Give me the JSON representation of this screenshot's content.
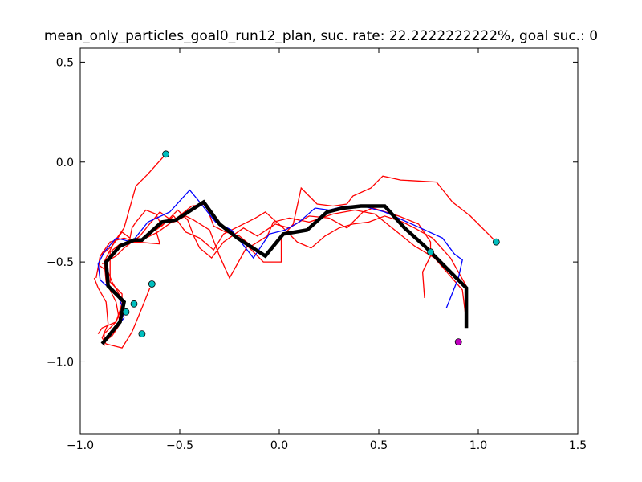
{
  "chart_data": {
    "type": "line",
    "title": "mean_only_particles_goal0_run12_plan, suc. rate: 22.2222222222%, goal suc.: 0",
    "xlim": [
      -1.0,
      1.5
    ],
    "ylim": [
      -1.36,
      0.57
    ],
    "xticks": [
      {
        "value": -1.0,
        "label": "−1.0"
      },
      {
        "value": -0.5,
        "label": "−0.5"
      },
      {
        "value": 0.0,
        "label": "0.0"
      },
      {
        "value": 0.5,
        "label": "0.5"
      },
      {
        "value": 1.0,
        "label": "1.0"
      },
      {
        "value": 1.5,
        "label": "1.5"
      }
    ],
    "yticks": [
      {
        "value": 0.5,
        "label": "0.5"
      },
      {
        "value": 0.0,
        "label": "0.0"
      },
      {
        "value": -0.5,
        "label": "−0.5"
      },
      {
        "value": -1.0,
        "label": "−1.0"
      }
    ],
    "grid": false,
    "colors": {
      "red": "#ff0000",
      "blue": "#0000ff",
      "black": "#000000",
      "cyan": "#00bfbf",
      "magenta": "#bf00bf"
    },
    "series": [
      {
        "kind": "particle",
        "color": "#ff0000",
        "width": 1.3,
        "points": [
          [
            -0.57,
            0.04
          ],
          [
            -0.66,
            -0.06
          ],
          [
            -0.72,
            -0.12
          ],
          [
            -0.78,
            -0.33
          ],
          [
            -0.83,
            -0.4
          ],
          [
            -0.88,
            -0.5
          ],
          [
            -0.87,
            -0.6
          ],
          [
            -0.82,
            -0.7
          ],
          [
            -0.8,
            -0.81
          ],
          [
            -0.84,
            -0.87
          ],
          [
            -0.88,
            -0.9
          ]
        ]
      },
      {
        "kind": "particle",
        "color": "#ff0000",
        "width": 1.3,
        "points": [
          [
            -0.91,
            -0.54
          ],
          [
            -0.9,
            -0.47
          ],
          [
            -0.84,
            -0.42
          ],
          [
            -0.79,
            -0.35
          ],
          [
            -0.75,
            -0.38
          ],
          [
            -0.74,
            -0.33
          ],
          [
            -0.72,
            -0.3
          ],
          [
            -0.67,
            -0.24
          ],
          [
            -0.62,
            -0.26
          ],
          [
            -0.59,
            -0.32
          ],
          [
            -0.55,
            -0.28
          ],
          [
            -0.51,
            -0.24
          ],
          [
            -0.46,
            -0.29
          ],
          [
            -0.43,
            -0.37
          ],
          [
            -0.4,
            -0.43
          ],
          [
            -0.34,
            -0.48
          ],
          [
            -0.28,
            -0.4
          ],
          [
            -0.18,
            -0.33
          ],
          [
            -0.11,
            -0.37
          ],
          [
            -0.02,
            -0.31
          ],
          [
            0.05,
            -0.33
          ],
          [
            0.15,
            -0.27
          ],
          [
            0.25,
            -0.28
          ],
          [
            0.34,
            -0.33
          ],
          [
            0.42,
            -0.25
          ],
          [
            0.47,
            -0.23
          ],
          [
            0.6,
            -0.27
          ],
          [
            0.7,
            -0.31
          ],
          [
            0.76,
            -0.4
          ],
          [
            0.76,
            -0.47
          ],
          [
            0.72,
            -0.55
          ],
          [
            0.73,
            -0.68
          ]
        ]
      },
      {
        "kind": "particle",
        "color": "#ff0000",
        "width": 1.3,
        "points": [
          [
            -0.9,
            -0.52
          ],
          [
            -0.86,
            -0.55
          ],
          [
            -0.84,
            -0.6
          ],
          [
            -0.8,
            -0.67
          ],
          [
            -0.8,
            -0.75
          ],
          [
            -0.82,
            -0.8
          ],
          [
            -0.89,
            -0.83
          ],
          [
            -0.91,
            -0.86
          ]
        ]
      },
      {
        "kind": "particle",
        "color": "#ff0000",
        "width": 1.3,
        "points": [
          [
            -0.93,
            -0.58
          ],
          [
            -0.91,
            -0.63
          ],
          [
            -0.87,
            -0.7
          ],
          [
            -0.86,
            -0.81
          ],
          [
            -0.89,
            -0.88
          ],
          [
            -0.87,
            -0.91
          ],
          [
            -0.79,
            -0.93
          ],
          [
            -0.74,
            -0.85
          ],
          [
            -0.69,
            -0.73
          ],
          [
            -0.65,
            -0.63
          ]
        ]
      },
      {
        "kind": "particle",
        "color": "#ff0000",
        "width": 1.3,
        "points": [
          [
            -0.89,
            -0.51
          ],
          [
            -0.82,
            -0.47
          ],
          [
            -0.78,
            -0.43
          ],
          [
            -0.7,
            -0.37
          ],
          [
            -0.66,
            -0.32
          ],
          [
            -0.6,
            -0.25
          ],
          [
            -0.53,
            -0.3
          ],
          [
            -0.47,
            -0.27
          ],
          [
            -0.43,
            -0.29
          ],
          [
            -0.35,
            -0.34
          ],
          [
            -0.3,
            -0.47
          ],
          [
            -0.25,
            -0.58
          ],
          [
            -0.16,
            -0.42
          ],
          [
            -0.08,
            -0.5
          ],
          [
            0.01,
            -0.5
          ],
          [
            0.01,
            -0.38
          ],
          [
            0.07,
            -0.31
          ],
          [
            0.11,
            -0.13
          ],
          [
            0.19,
            -0.21
          ],
          [
            0.27,
            -0.22
          ],
          [
            0.34,
            -0.21
          ],
          [
            0.37,
            -0.17
          ],
          [
            0.46,
            -0.13
          ],
          [
            0.52,
            -0.07
          ],
          [
            0.61,
            -0.09
          ],
          [
            0.79,
            -0.1
          ],
          [
            0.87,
            -0.2
          ],
          [
            0.96,
            -0.27
          ],
          [
            1.09,
            -0.4
          ]
        ]
      },
      {
        "kind": "particle",
        "color": "#ff0000",
        "width": 1.3,
        "points": [
          [
            -0.92,
            -0.58
          ],
          [
            -0.9,
            -0.47
          ],
          [
            -0.85,
            -0.4
          ],
          [
            -0.78,
            -0.38
          ],
          [
            -0.72,
            -0.4
          ],
          [
            -0.6,
            -0.41
          ],
          [
            -0.62,
            -0.34
          ],
          [
            -0.53,
            -0.27
          ],
          [
            -0.47,
            -0.35
          ],
          [
            -0.4,
            -0.38
          ],
          [
            -0.33,
            -0.44
          ],
          [
            -0.28,
            -0.36
          ],
          [
            -0.22,
            -0.33
          ],
          [
            -0.16,
            -0.3
          ],
          [
            -0.12,
            -0.28
          ],
          [
            -0.07,
            -0.25
          ],
          [
            0.02,
            -0.33
          ],
          [
            0.09,
            -0.4
          ],
          [
            0.16,
            -0.43
          ],
          [
            0.23,
            -0.37
          ],
          [
            0.3,
            -0.33
          ],
          [
            0.37,
            -0.31
          ],
          [
            0.45,
            -0.3
          ],
          [
            0.53,
            -0.27
          ],
          [
            0.62,
            -0.3
          ],
          [
            0.68,
            -0.33
          ],
          [
            0.77,
            -0.38
          ],
          [
            0.86,
            -0.48
          ],
          [
            0.94,
            -0.62
          ],
          [
            0.94,
            -0.8
          ]
        ]
      },
      {
        "kind": "particle",
        "color": "#ff0000",
        "width": 1.3,
        "points": [
          [
            -0.88,
            -0.92
          ],
          [
            -0.88,
            -0.86
          ],
          [
            -0.82,
            -0.8
          ],
          [
            -0.79,
            -0.71
          ],
          [
            -0.79,
            -0.66
          ],
          [
            -0.85,
            -0.6
          ],
          [
            -0.85,
            -0.45
          ],
          [
            -0.8,
            -0.41
          ],
          [
            -0.71,
            -0.4
          ],
          [
            -0.61,
            -0.35
          ],
          [
            -0.54,
            -0.3
          ],
          [
            -0.44,
            -0.22
          ],
          [
            -0.37,
            -0.21
          ],
          [
            -0.33,
            -0.32
          ],
          [
            -0.27,
            -0.35
          ],
          [
            -0.2,
            -0.37
          ],
          [
            -0.14,
            -0.42
          ],
          [
            -0.06,
            -0.37
          ],
          [
            -0.03,
            -0.3
          ],
          [
            0.05,
            -0.28
          ],
          [
            0.15,
            -0.3
          ],
          [
            0.27,
            -0.26
          ],
          [
            0.38,
            -0.24
          ],
          [
            0.48,
            -0.26
          ],
          [
            0.58,
            -0.34
          ],
          [
            0.68,
            -0.42
          ],
          [
            0.78,
            -0.48
          ],
          [
            0.85,
            -0.56
          ],
          [
            0.92,
            -0.64
          ],
          [
            0.94,
            -0.8
          ]
        ]
      },
      {
        "kind": "particle",
        "color": "#0000ff",
        "width": 1.3,
        "points": [
          [
            -0.89,
            -0.91
          ],
          [
            -0.84,
            -0.85
          ],
          [
            -0.78,
            -0.78
          ],
          [
            -0.79,
            -0.72
          ],
          [
            -0.81,
            -0.67
          ],
          [
            -0.9,
            -0.59
          ],
          [
            -0.91,
            -0.51
          ],
          [
            -0.88,
            -0.45
          ],
          [
            -0.82,
            -0.38
          ],
          [
            -0.74,
            -0.4
          ],
          [
            -0.66,
            -0.3
          ],
          [
            -0.55,
            -0.25
          ],
          [
            -0.45,
            -0.14
          ],
          [
            -0.4,
            -0.2
          ],
          [
            -0.32,
            -0.3
          ],
          [
            -0.24,
            -0.34
          ],
          [
            -0.13,
            -0.48
          ],
          [
            -0.05,
            -0.36
          ],
          [
            0.03,
            -0.34
          ],
          [
            0.1,
            -0.3
          ],
          [
            0.18,
            -0.23
          ],
          [
            0.25,
            -0.24
          ],
          [
            0.33,
            -0.22
          ],
          [
            0.42,
            -0.22
          ],
          [
            0.53,
            -0.25
          ],
          [
            0.62,
            -0.29
          ],
          [
            0.71,
            -0.33
          ],
          [
            0.82,
            -0.38
          ],
          [
            0.88,
            -0.46
          ],
          [
            0.92,
            -0.49
          ],
          [
            0.9,
            -0.58
          ],
          [
            0.84,
            -0.73
          ]
        ]
      },
      {
        "kind": "plan",
        "color": "#000000",
        "width": 4.5,
        "points": [
          [
            -0.89,
            -0.91
          ],
          [
            -0.8,
            -0.8
          ],
          [
            -0.78,
            -0.7
          ],
          [
            -0.8,
            -0.68
          ],
          [
            -0.86,
            -0.62
          ],
          [
            -0.87,
            -0.5
          ],
          [
            -0.8,
            -0.42
          ],
          [
            -0.73,
            -0.39
          ],
          [
            -0.69,
            -0.39
          ],
          [
            -0.59,
            -0.3
          ],
          [
            -0.52,
            -0.29
          ],
          [
            -0.38,
            -0.2
          ],
          [
            -0.3,
            -0.31
          ],
          [
            -0.21,
            -0.38
          ],
          [
            -0.07,
            -0.47
          ],
          [
            0.02,
            -0.36
          ],
          [
            0.14,
            -0.34
          ],
          [
            0.24,
            -0.25
          ],
          [
            0.32,
            -0.23
          ],
          [
            0.41,
            -0.22
          ],
          [
            0.53,
            -0.22
          ],
          [
            0.63,
            -0.33
          ],
          [
            0.73,
            -0.42
          ],
          [
            0.83,
            -0.52
          ],
          [
            0.94,
            -0.63
          ],
          [
            0.94,
            -0.83
          ]
        ]
      }
    ],
    "markers": [
      {
        "x": -0.57,
        "y": 0.04,
        "color": "#00bfbf"
      },
      {
        "x": -0.64,
        "y": -0.61,
        "color": "#00bfbf"
      },
      {
        "x": -0.73,
        "y": -0.71,
        "color": "#00bfbf"
      },
      {
        "x": -0.77,
        "y": -0.75,
        "color": "#00bfbf"
      },
      {
        "x": -0.69,
        "y": -0.86,
        "color": "#00bfbf"
      },
      {
        "x": 0.76,
        "y": -0.45,
        "color": "#00bfbf"
      },
      {
        "x": 1.09,
        "y": -0.4,
        "color": "#00bfbf"
      },
      {
        "x": 0.9,
        "y": -0.9,
        "color": "#bf00bf"
      }
    ]
  }
}
